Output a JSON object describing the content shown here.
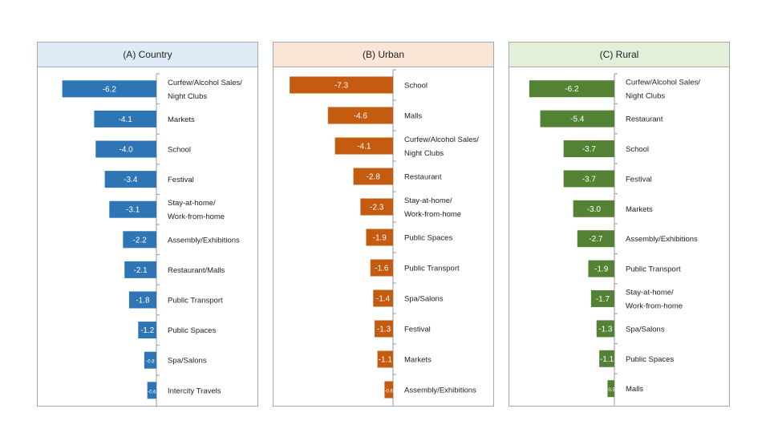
{
  "chart_data": [
    {
      "type": "bar",
      "title": "(A) Country",
      "header_color": "#deebf7",
      "bar_color": "#2e75b6",
      "categories": [
        "Curfew/Alcohol Sales/\nNight Clubs",
        "Markets",
        "School",
        "Festival",
        "Stay-at-home/\nWork-from-home",
        "Assembly/Exhibitions",
        "Restaurant/Malls",
        "Public Transport",
        "Public Spaces",
        "Spa/Salons",
        "Intercity Travels"
      ],
      "values": [
        -6.2,
        -4.1,
        -4.0,
        -3.4,
        -3.1,
        -2.2,
        -2.1,
        -1.8,
        -1.2,
        -0.8,
        -0.6
      ],
      "labels": [
        "-6.2",
        "-4.1",
        "-4.0",
        "-3.4",
        "-3.1",
        "-2.2",
        "-2.1",
        "-1.8",
        "-1.2",
        "-0.8",
        "-0.6"
      ],
      "xlim": [
        -7.5,
        0
      ]
    },
    {
      "type": "bar",
      "title": "(B) Urban",
      "header_color": "#fbe5d6",
      "bar_color": "#c55a11",
      "categories": [
        "School",
        "Malls",
        "Curfew/Alcohol Sales/\nNight Clubs",
        "Restaurant",
        "Stay-at-home/\nWork-from-home",
        "Public Spaces",
        "Public Transport",
        "Spa/Salons",
        "Festival",
        "Markets",
        "Assembly/Exhibitions"
      ],
      "values": [
        -7.3,
        -4.6,
        -4.1,
        -2.8,
        -2.3,
        -1.9,
        -1.6,
        -1.4,
        -1.3,
        -1.1,
        -0.6
      ],
      "labels": [
        "-7.3",
        "-4.6",
        "-4.1",
        "-2.8",
        "-2.3",
        "-1.9",
        "-1.6",
        "-1.4",
        "-1.3",
        "-1.1",
        "-0.6"
      ],
      "xlim": [
        -8.1,
        0
      ]
    },
    {
      "type": "bar",
      "title": "(C) Rural",
      "header_color": "#e2f0d9",
      "bar_color": "#548235",
      "categories": [
        "Curfew/Alcohol Sales/\nNight Clubs",
        "Restaurant",
        "School",
        "Festival",
        "Markets",
        "Assembly/Exhibitions",
        "Public Transport",
        "Stay-at-home/\nWork-from-home",
        "Spa/Salons",
        "Public Spaces",
        "Malls"
      ],
      "values": [
        -6.2,
        -5.4,
        -3.7,
        -3.7,
        -3.0,
        -2.7,
        -1.9,
        -1.7,
        -1.3,
        -1.1,
        -0.5
      ],
      "labels": [
        "-6.2",
        "-5.4",
        "-3.7",
        "-3.7",
        "-3.0",
        "-2.7",
        "-1.9",
        "-1.7",
        "-1.3",
        "-1.1",
        "-0.5"
      ],
      "xlim": [
        -7.3,
        0
      ]
    }
  ]
}
